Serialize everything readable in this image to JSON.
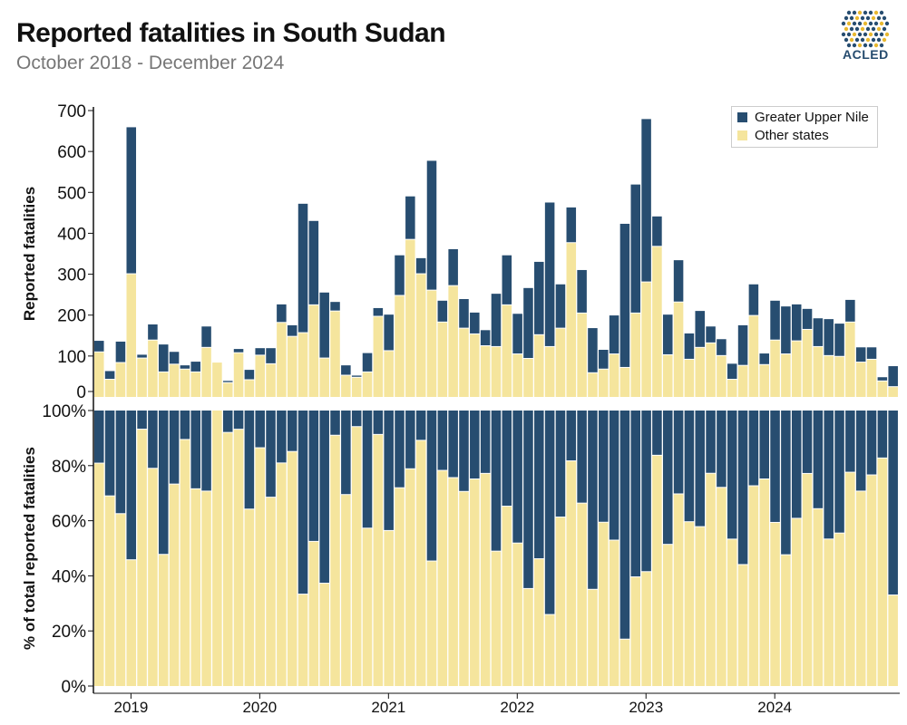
{
  "header": {
    "title": "Reported fatalities in South Sudan",
    "subtitle": "October 2018 - December 2024",
    "logo_text": "ACLED"
  },
  "colors": {
    "greater_upper_nile": "#274d70",
    "other_states": "#f5e59d"
  },
  "chart_data": [
    {
      "type": "bar",
      "stacked": true,
      "ylabel": "Reported fatalities",
      "ylim": [
        0,
        700
      ],
      "yticks": [
        "0",
        "100",
        "200",
        "300",
        "400",
        "500",
        "600",
        "700"
      ],
      "xticks": [
        "2019",
        "2020",
        "2021",
        "2022",
        "2023",
        "2024"
      ],
      "legend_position": "top-right",
      "categories": [
        "2018-10",
        "2018-11",
        "2018-12",
        "2019-01",
        "2019-02",
        "2019-03",
        "2019-04",
        "2019-05",
        "2019-06",
        "2019-07",
        "2019-08",
        "2019-09",
        "2019-10",
        "2019-11",
        "2019-12",
        "2020-01",
        "2020-02",
        "2020-03",
        "2020-04",
        "2020-05",
        "2020-06",
        "2020-07",
        "2020-08",
        "2020-09",
        "2020-10",
        "2020-11",
        "2020-12",
        "2021-01",
        "2021-02",
        "2021-03",
        "2021-04",
        "2021-05",
        "2021-06",
        "2021-07",
        "2021-08",
        "2021-09",
        "2021-10",
        "2021-11",
        "2021-12",
        "2022-01",
        "2022-02",
        "2022-03",
        "2022-04",
        "2022-05",
        "2022-06",
        "2022-07",
        "2022-08",
        "2022-09",
        "2022-10",
        "2022-11",
        "2022-12",
        "2023-01",
        "2023-02",
        "2023-03",
        "2023-04",
        "2023-05",
        "2023-06",
        "2023-07",
        "2023-08",
        "2023-09",
        "2023-10",
        "2023-11",
        "2023-12",
        "2024-01",
        "2024-02",
        "2024-03",
        "2024-04",
        "2024-05",
        "2024-06",
        "2024-07",
        "2024-08",
        "2024-09",
        "2024-10",
        "2024-11",
        "2024-12"
      ],
      "series": [
        {
          "name": "Other states",
          "values": [
            109,
            42,
            83,
            300,
            94,
            138,
            60,
            79,
            67,
            60,
            120,
            84,
            34,
            107,
            41,
            101,
            80,
            181,
            147,
            156,
            224,
            94,
            209,
            52,
            47,
            60,
            196,
            112,
            247,
            384,
            300,
            260,
            182,
            271,
            167,
            153,
            124,
            122,
            224,
            104,
            93,
            151,
            122,
            167,
            376,
            204,
            58,
            67,
            104,
            71,
            204,
            280,
            367,
            102,
            231,
            91,
            120,
            131,
            100,
            42,
            76,
            198,
            78,
            138,
            104,
            136,
            164,
            122,
            100,
            98,
            182,
            84,
            91,
            38,
            24
          ]
        },
        {
          "name": "Greater Upper Nile",
          "values": [
            26,
            19,
            50,
            357,
            7,
            37,
            66,
            29,
            8,
            24,
            50,
            0,
            3,
            8,
            23,
            16,
            37,
            43,
            26,
            314,
            204,
            159,
            21,
            23,
            3,
            45,
            19,
            87,
            97,
            104,
            37,
            315,
            51,
            88,
            70,
            51,
            37,
            128,
            120,
            97,
            171,
            177,
            351,
            106,
            85,
            104,
            108,
            46,
            93,
            350,
            313,
            397,
            72,
            97,
            101,
            62,
            88,
            39,
            39,
            37,
            97,
            75,
            26,
            95,
            115,
            88,
            49,
            68,
            88,
            79,
            53,
            35,
            28,
            8,
            49
          ]
        }
      ]
    },
    {
      "type": "bar",
      "stacked": true,
      "percent": true,
      "ylabel": "% of total reported fatalities",
      "ylim": [
        0,
        100
      ],
      "yticks": [
        "0%",
        "20%",
        "40%",
        "60%",
        "80%",
        "100%"
      ],
      "note": "shares of the same monthly series"
    }
  ]
}
